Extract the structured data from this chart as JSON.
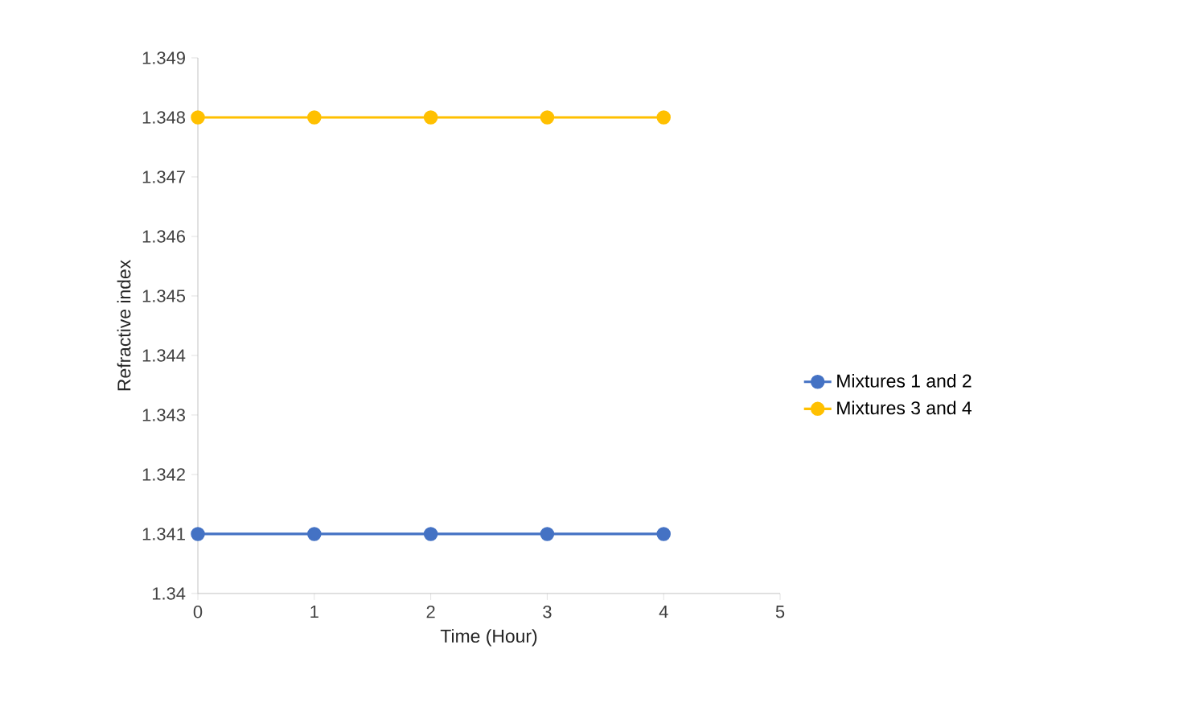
{
  "chart_data": {
    "type": "line",
    "xlabel": "Time (Hour)",
    "ylabel": "Refractive index",
    "x": [
      0,
      1,
      2,
      3,
      4
    ],
    "series": [
      {
        "name": "Mixtures 1 and 2",
        "color": "#4472c4",
        "values": [
          1.341,
          1.341,
          1.341,
          1.341,
          1.341
        ]
      },
      {
        "name": "Mixtures 3 and 4",
        "color": "#ffc000",
        "values": [
          1.348,
          1.348,
          1.348,
          1.348,
          1.348
        ]
      }
    ],
    "xlim": [
      0,
      5
    ],
    "xticks": [
      0,
      1,
      2,
      3,
      4,
      5
    ],
    "ylim": [
      1.34,
      1.349
    ],
    "yticks": [
      1.34,
      1.341,
      1.342,
      1.343,
      1.344,
      1.345,
      1.346,
      1.347,
      1.348,
      1.349
    ],
    "grid": false,
    "legend": "right",
    "marker": "circle",
    "line_style": "solid"
  }
}
